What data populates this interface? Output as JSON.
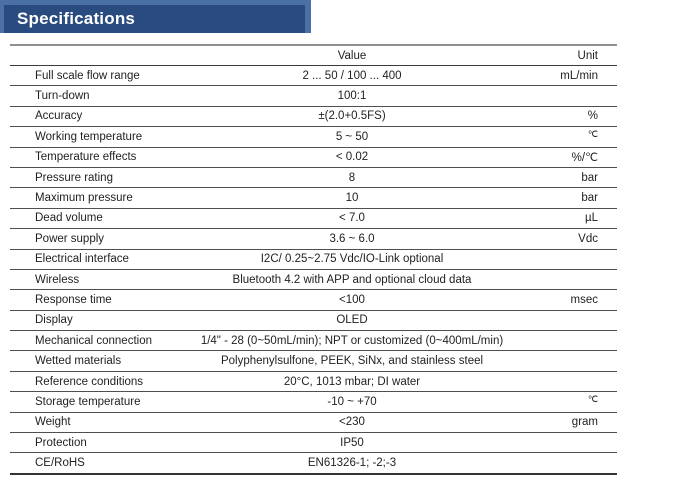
{
  "header": {
    "title": "Specifications",
    "bar_light_color": "#4a70a6",
    "bar_dark_color": "#2a4b80",
    "title_color": "#ffffff"
  },
  "table": {
    "value_header": "Value",
    "unit_header": "Unit",
    "rows": [
      {
        "param": "Full scale flow range",
        "value": "2 ... 50 / 100 ... 400",
        "unit": "mL/min",
        "unit_sup": false
      },
      {
        "param": "Turn-down",
        "value": "100:1",
        "unit": "",
        "unit_sup": false
      },
      {
        "param": "Accuracy",
        "value": "±(2.0+0.5FS)",
        "unit": "%",
        "unit_sup": false
      },
      {
        "param": "Working temperature",
        "value": "5 ~ 50",
        "unit": "℃",
        "unit_sup": true
      },
      {
        "param": "Temperature effects",
        "value": "< 0.02",
        "unit": "%/℃",
        "unit_sup": false
      },
      {
        "param": "Pressure rating",
        "value": "8",
        "unit": "bar",
        "unit_sup": false
      },
      {
        "param": "Maximum pressure",
        "value": "10",
        "unit": "bar",
        "unit_sup": false
      },
      {
        "param": "Dead volume",
        "value": "< 7.0",
        "unit": "µL",
        "unit_sup": false
      },
      {
        "param": "Power supply",
        "value": "3.6 ~ 6.0",
        "unit": "Vdc",
        "unit_sup": false
      },
      {
        "param": "Electrical interface",
        "value": "I2C/ 0.25~2.75 Vdc/IO-Link optional",
        "unit": "",
        "unit_sup": false
      },
      {
        "param": "Wireless",
        "value": "Bluetooth 4.2 with APP and optional cloud data",
        "unit": "",
        "unit_sup": false
      },
      {
        "param": "Response time",
        "value": "<100",
        "unit": "msec",
        "unit_sup": false
      },
      {
        "param": "Display",
        "value": "OLED",
        "unit": "",
        "unit_sup": false
      },
      {
        "param": "Mechanical connection",
        "value": "1/4\" - 28 (0~50mL/min); NPT or customized (0~400mL/min)",
        "unit": "",
        "unit_sup": false
      },
      {
        "param": "Wetted materials",
        "value": "Polyphenylsulfone, PEEK, SiNx, and stainless steel",
        "unit": "",
        "unit_sup": false
      },
      {
        "param": "Reference conditions",
        "value": "20°C, 1013 mbar; DI water",
        "unit": "",
        "unit_sup": false
      },
      {
        "param": "Storage temperature",
        "value": "-10 ~ +70",
        "unit": "℃",
        "unit_sup": true
      },
      {
        "param": "Weight",
        "value": "<230",
        "unit": "gram",
        "unit_sup": false
      },
      {
        "param": "Protection",
        "value": "IP50",
        "unit": "",
        "unit_sup": false
      },
      {
        "param": "CE/RoHS",
        "value": "EN61326-1; -2;-3",
        "unit": "",
        "unit_sup": false
      }
    ]
  }
}
